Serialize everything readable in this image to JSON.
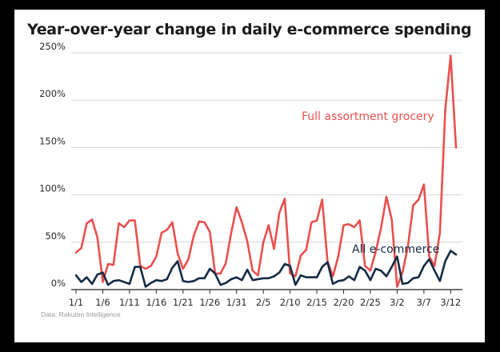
{
  "chart_data": {
    "type": "line",
    "title": "Year-over-year change in daily e-commerce spending",
    "source": "Data: Rakuten Intelligence",
    "xlabel": "",
    "ylabel": "",
    "ylim": [
      0,
      250
    ],
    "yticks": [
      {
        "value": 0,
        "label": "0%"
      },
      {
        "value": 50,
        "label": "50%"
      },
      {
        "value": 100,
        "label": "100%"
      },
      {
        "value": 150,
        "label": "150%"
      },
      {
        "value": 200,
        "label": "200%"
      },
      {
        "value": 250,
        "label": "250%"
      }
    ],
    "xticks": [
      {
        "index": 0,
        "label": "1/1"
      },
      {
        "index": 5,
        "label": "1/6"
      },
      {
        "index": 10,
        "label": "1/11"
      },
      {
        "index": 15,
        "label": "1/16"
      },
      {
        "index": 20,
        "label": "1/21"
      },
      {
        "index": 25,
        "label": "1/26"
      },
      {
        "index": 30,
        "label": "1/31"
      },
      {
        "index": 35,
        "label": "2/5"
      },
      {
        "index": 40,
        "label": "2/10"
      },
      {
        "index": 45,
        "label": "2/15"
      },
      {
        "index": 50,
        "label": "2/20"
      },
      {
        "index": 55,
        "label": "2/25"
      },
      {
        "index": 60,
        "label": "3/2"
      },
      {
        "index": 65,
        "label": "3/7"
      },
      {
        "index": 70,
        "label": "3/12"
      }
    ],
    "series": [
      {
        "name": "Full assortment grocery",
        "color": "#e8504e",
        "values": [
          39,
          44,
          70,
          74,
          55,
          8,
          27,
          26,
          70,
          66,
          73,
          73,
          25,
          22,
          25,
          35,
          60,
          63,
          71,
          38,
          22,
          32,
          57,
          72,
          71,
          61,
          17,
          17,
          28,
          60,
          87,
          71,
          51,
          20,
          15,
          50,
          68,
          43,
          81,
          96,
          17,
          14,
          36,
          42,
          71,
          73,
          95,
          30,
          14,
          35,
          68,
          69,
          66,
          73,
          25,
          20,
          40,
          65,
          98,
          74,
          3,
          18,
          45,
          89,
          95,
          111,
          35,
          25,
          60,
          190,
          247,
          150
        ]
      },
      {
        "name": "All e-commerce",
        "color": "#152b45",
        "values": [
          15,
          8,
          13,
          6,
          16,
          18,
          5,
          9,
          10,
          8,
          6,
          24,
          24,
          3,
          7,
          10,
          9,
          11,
          23,
          30,
          9,
          8,
          9,
          12,
          12,
          22,
          17,
          5,
          7,
          11,
          13,
          10,
          21,
          10,
          11,
          12,
          12,
          14,
          18,
          27,
          25,
          5,
          15,
          13,
          13,
          13,
          24,
          29,
          6,
          9,
          10,
          14,
          10,
          24,
          20,
          10,
          22,
          20,
          14,
          24,
          35,
          6,
          7,
          12,
          13,
          25,
          32,
          20,
          9,
          30,
          41,
          37
        ]
      }
    ]
  }
}
